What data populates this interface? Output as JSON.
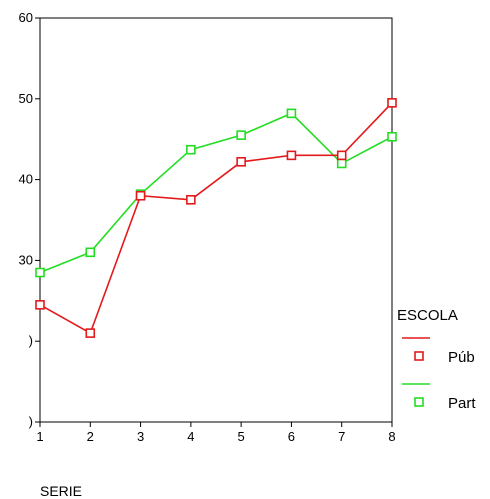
{
  "chart_data": {
    "type": "line",
    "xlabel": "SERIE",
    "ylabel": "",
    "x": [
      1,
      2,
      3,
      4,
      5,
      6,
      7,
      8
    ],
    "xlim": [
      1,
      8
    ],
    "ylim": [
      10,
      60
    ],
    "yticks": [
      10,
      20,
      30,
      40,
      50,
      60
    ],
    "ytick_labels": [
      ")",
      ")",
      "30",
      "40",
      "50",
      "60"
    ],
    "xtick_labels": [
      "1",
      "2",
      "3",
      "4",
      "5",
      "6",
      "7",
      "8"
    ],
    "grid": false,
    "legend": {
      "title": "ESCOLA",
      "placement": "right"
    },
    "series": [
      {
        "name": "Púb",
        "color": "#e31a1c",
        "marker": "square",
        "values": [
          24.5,
          21.0,
          38.0,
          37.5,
          42.2,
          43.0,
          43.0,
          49.5
        ]
      },
      {
        "name": "Part",
        "color": "#22dd22",
        "marker": "square",
        "values": [
          28.5,
          31.0,
          38.2,
          43.7,
          45.5,
          48.2,
          42.0,
          45.3
        ]
      }
    ]
  }
}
